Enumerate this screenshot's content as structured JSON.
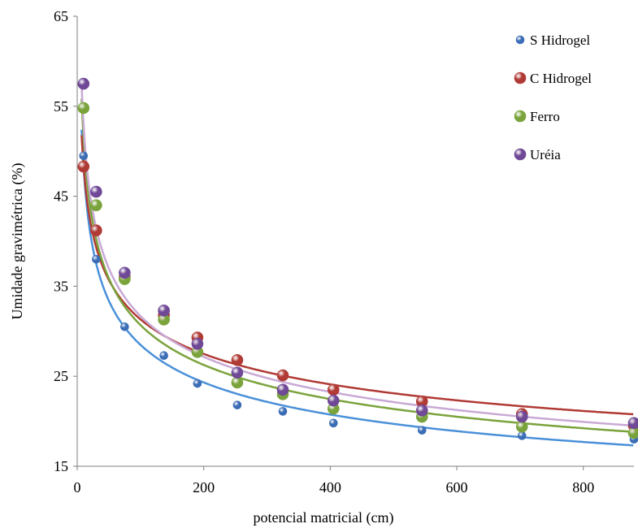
{
  "chart_data": {
    "type": "scatter",
    "xlabel": "potencial matricial (cm)",
    "ylabel": "Umidade gravimétrica (%)",
    "xlim": [
      0,
      880
    ],
    "ylim": [
      15,
      65
    ],
    "xticks": [
      0,
      200,
      400,
      600,
      800
    ],
    "yticks": [
      15,
      25,
      35,
      45,
      55,
      65
    ],
    "grid": false,
    "legend_position": "top-right",
    "series": [
      {
        "name": "S Hidrogel",
        "color": "#3a6db5",
        "trend_color": "#4a90d9",
        "x": [
          10,
          30,
          75,
          137,
          190,
          253,
          325,
          405,
          545,
          703,
          880
        ],
        "y": [
          49.5,
          38,
          30.5,
          27.3,
          24.2,
          21.8,
          21.1,
          19.8,
          19,
          18.4,
          18
        ],
        "trend_fit": {
          "a": 81.8,
          "b": -0.229
        }
      },
      {
        "name": "C Hidrogel",
        "color": "#b03a35",
        "trend_color": "#b03a35",
        "x": [
          10,
          30,
          75,
          137,
          190,
          253,
          325,
          405,
          545,
          703,
          880
        ],
        "y": [
          48.3,
          41.2,
          36,
          31.8,
          29.3,
          26.8,
          25.1,
          23.5,
          22.2,
          20.8,
          19.5
        ],
        "trend_fit": {
          "a": 74.8,
          "b": -0.189
        }
      },
      {
        "name": "Ferro",
        "color": "#7aa33c",
        "trend_color": "#7aa33c",
        "x": [
          10,
          30,
          75,
          137,
          190,
          253,
          325,
          405,
          545,
          703,
          880
        ],
        "y": [
          54.8,
          44,
          35.8,
          31.3,
          27.7,
          24.3,
          23,
          21.4,
          20.5,
          19.4,
          18.7
        ],
        "trend_fit": {
          "a": 86.5,
          "b": -0.225
        }
      },
      {
        "name": "Uréia",
        "color": "#6f4896",
        "trend_color": "#c9a9d6",
        "x": [
          10,
          30,
          75,
          137,
          190,
          253,
          325,
          405,
          545,
          703,
          880
        ],
        "y": [
          57.5,
          45.5,
          36.5,
          32.3,
          28.6,
          25.4,
          23.5,
          22.3,
          21.2,
          20.5,
          19.8
        ],
        "trend_fit": {
          "a": 88.5,
          "b": -0.223
        }
      }
    ]
  }
}
